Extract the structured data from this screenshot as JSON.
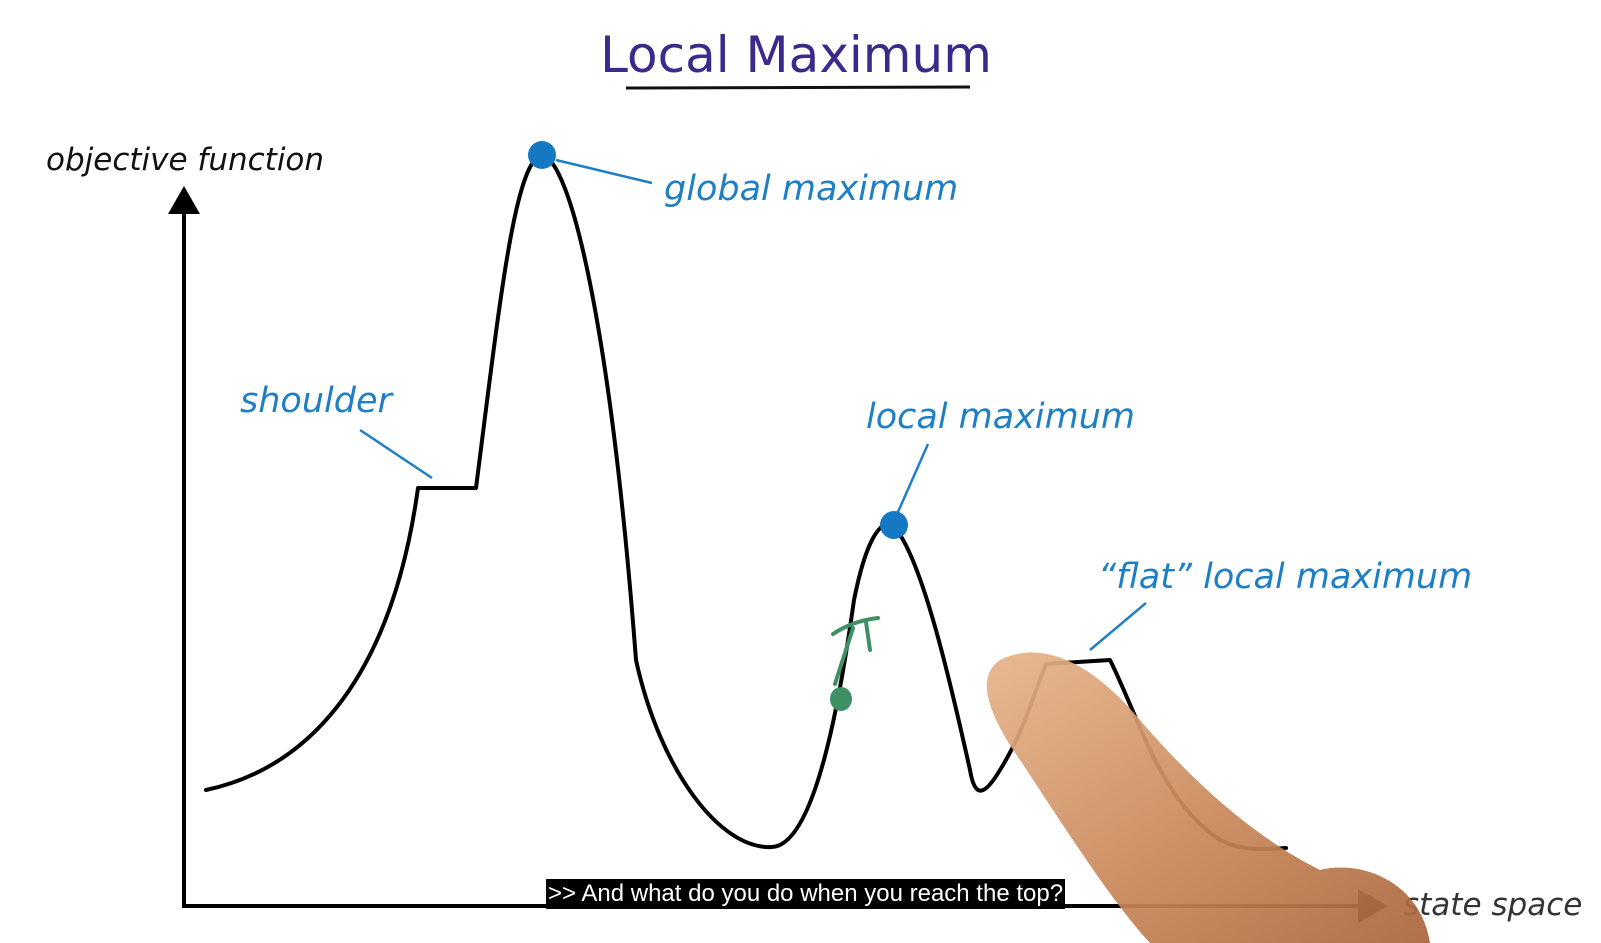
{
  "title": "Local Maximum",
  "axis": {
    "y_label": "objective function",
    "x_label": "state space"
  },
  "labels": {
    "shoulder": "shoulder",
    "global_maximum": "global maximum",
    "local_maximum": "local maximum",
    "flat_local_maximum": "“flat” local maximum"
  },
  "caption": ">> And what do you do when you reach the top?",
  "colors": {
    "title": "#3b2a8c",
    "curve": "#000000",
    "annotation": "#1f7fc4",
    "marker": "#1478c3",
    "agent": "#3f8f65",
    "caption_bg": "#000000",
    "caption_text": "#ffffff"
  },
  "icons": {
    "agent_marker": "green-pi-figure-icon",
    "pointer": "pointing-finger-icon"
  }
}
